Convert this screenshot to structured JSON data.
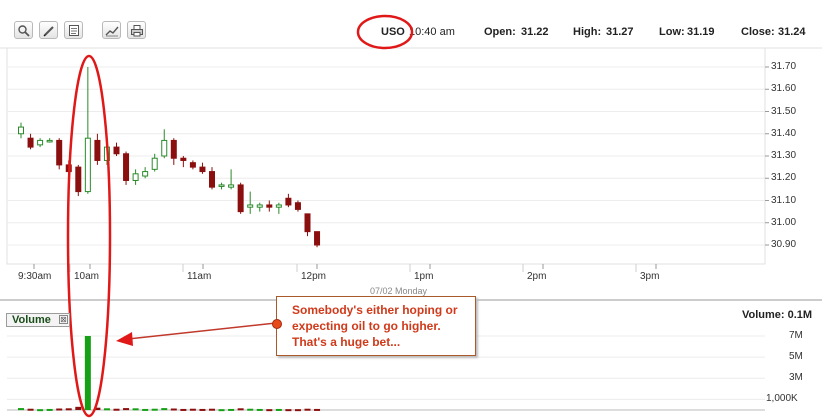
{
  "toolbar": {
    "buttons": [
      {
        "name": "zoom-button",
        "icon": "magnifier-icon"
      },
      {
        "name": "draw-button",
        "icon": "pencil-icon"
      },
      {
        "name": "notes-button",
        "icon": "document-icon"
      },
      {
        "name": "chart-button",
        "icon": "chart-icon"
      },
      {
        "name": "print-button",
        "icon": "printer-icon"
      }
    ]
  },
  "quote": {
    "symbol": "USO",
    "time": "10:40 am",
    "open_label": "Open:",
    "open": "31.22",
    "high_label": "High:",
    "high": "31.27",
    "low_label": "Low:",
    "low": "31.19",
    "close_label": "Close:",
    "close": "31.24"
  },
  "price_axis": [
    "31.70",
    "31.60",
    "31.50",
    "31.40",
    "31.30",
    "31.20",
    "31.10",
    "31.00",
    "30.90"
  ],
  "time_axis": [
    "9:30am",
    "10am",
    "11am",
    "12pm",
    "1pm",
    "2pm",
    "3pm"
  ],
  "date_label": "07/02 Monday",
  "volume": {
    "tab_label": "Volume",
    "close_glyph": "⊠",
    "title": "Volume: 0.1M",
    "axis": [
      "7M",
      "5M",
      "3M",
      "1,000K"
    ]
  },
  "annotation": {
    "lines": [
      "Somebody's either hoping or",
      "expecting oil to go higher.",
      "That's a huge bet..."
    ]
  },
  "colors": {
    "up": "#2a8a2a",
    "down": "#8b0f0f",
    "highlight": "#e01818",
    "volume_up": "#16a016"
  },
  "chart_data": {
    "type": "candlestick",
    "ylim": [
      30.85,
      31.75
    ],
    "candles": [
      {
        "o": 31.4,
        "h": 31.45,
        "l": 31.38,
        "c": 31.43
      },
      {
        "o": 31.38,
        "h": 31.4,
        "l": 31.33,
        "c": 31.34
      },
      {
        "o": 31.35,
        "h": 31.38,
        "l": 31.34,
        "c": 31.37
      },
      {
        "o": 31.37,
        "h": 31.38,
        "l": 31.36,
        "c": 31.37
      },
      {
        "o": 31.37,
        "h": 31.38,
        "l": 31.24,
        "c": 31.26
      },
      {
        "o": 31.26,
        "h": 31.28,
        "l": 31.2,
        "c": 31.23
      },
      {
        "o": 31.25,
        "h": 31.26,
        "l": 31.12,
        "c": 31.14
      },
      {
        "o": 31.14,
        "h": 31.7,
        "l": 31.13,
        "c": 31.38
      },
      {
        "o": 31.37,
        "h": 31.4,
        "l": 31.26,
        "c": 31.28
      },
      {
        "o": 31.28,
        "h": 31.36,
        "l": 31.26,
        "c": 31.34
      },
      {
        "o": 31.34,
        "h": 31.36,
        "l": 31.3,
        "c": 31.31
      },
      {
        "o": 31.31,
        "h": 31.32,
        "l": 31.17,
        "c": 31.19
      },
      {
        "o": 31.19,
        "h": 31.24,
        "l": 31.17,
        "c": 31.22
      },
      {
        "o": 31.21,
        "h": 31.25,
        "l": 31.2,
        "c": 31.23
      },
      {
        "o": 31.24,
        "h": 31.31,
        "l": 31.23,
        "c": 31.29
      },
      {
        "o": 31.3,
        "h": 31.42,
        "l": 31.29,
        "c": 31.37
      },
      {
        "o": 31.37,
        "h": 31.38,
        "l": 31.26,
        "c": 31.29
      },
      {
        "o": 31.29,
        "h": 31.3,
        "l": 31.25,
        "c": 31.28
      },
      {
        "o": 31.27,
        "h": 31.28,
        "l": 31.24,
        "c": 31.25
      },
      {
        "o": 31.25,
        "h": 31.27,
        "l": 31.22,
        "c": 31.23
      },
      {
        "o": 31.23,
        "h": 31.25,
        "l": 31.15,
        "c": 31.16
      },
      {
        "o": 31.17,
        "h": 31.18,
        "l": 31.15,
        "c": 31.17
      },
      {
        "o": 31.16,
        "h": 31.24,
        "l": 31.15,
        "c": 31.17
      },
      {
        "o": 31.17,
        "h": 31.18,
        "l": 31.04,
        "c": 31.05
      },
      {
        "o": 31.07,
        "h": 31.14,
        "l": 31.04,
        "c": 31.08
      },
      {
        "o": 31.07,
        "h": 31.09,
        "l": 31.05,
        "c": 31.08
      },
      {
        "o": 31.08,
        "h": 31.1,
        "l": 31.05,
        "c": 31.07
      },
      {
        "o": 31.07,
        "h": 31.09,
        "l": 31.04,
        "c": 31.08
      },
      {
        "o": 31.11,
        "h": 31.13,
        "l": 31.07,
        "c": 31.08
      },
      {
        "o": 31.09,
        "h": 31.1,
        "l": 31.05,
        "c": 31.06
      },
      {
        "o": 31.04,
        "h": 31.04,
        "l": 30.94,
        "c": 30.96
      },
      {
        "o": 30.96,
        "h": 30.96,
        "l": 30.89,
        "c": 30.9
      }
    ],
    "volume_values": [
      0.18,
      0.12,
      0.08,
      0.1,
      0.14,
      0.16,
      0.3,
      7.0,
      0.22,
      0.16,
      0.12,
      0.18,
      0.16,
      0.1,
      0.12,
      0.18,
      0.14,
      0.1,
      0.12,
      0.1,
      0.12,
      0.08,
      0.1,
      0.16,
      0.12,
      0.1,
      0.08,
      0.1,
      0.08,
      0.08,
      0.12,
      0.1
    ]
  }
}
